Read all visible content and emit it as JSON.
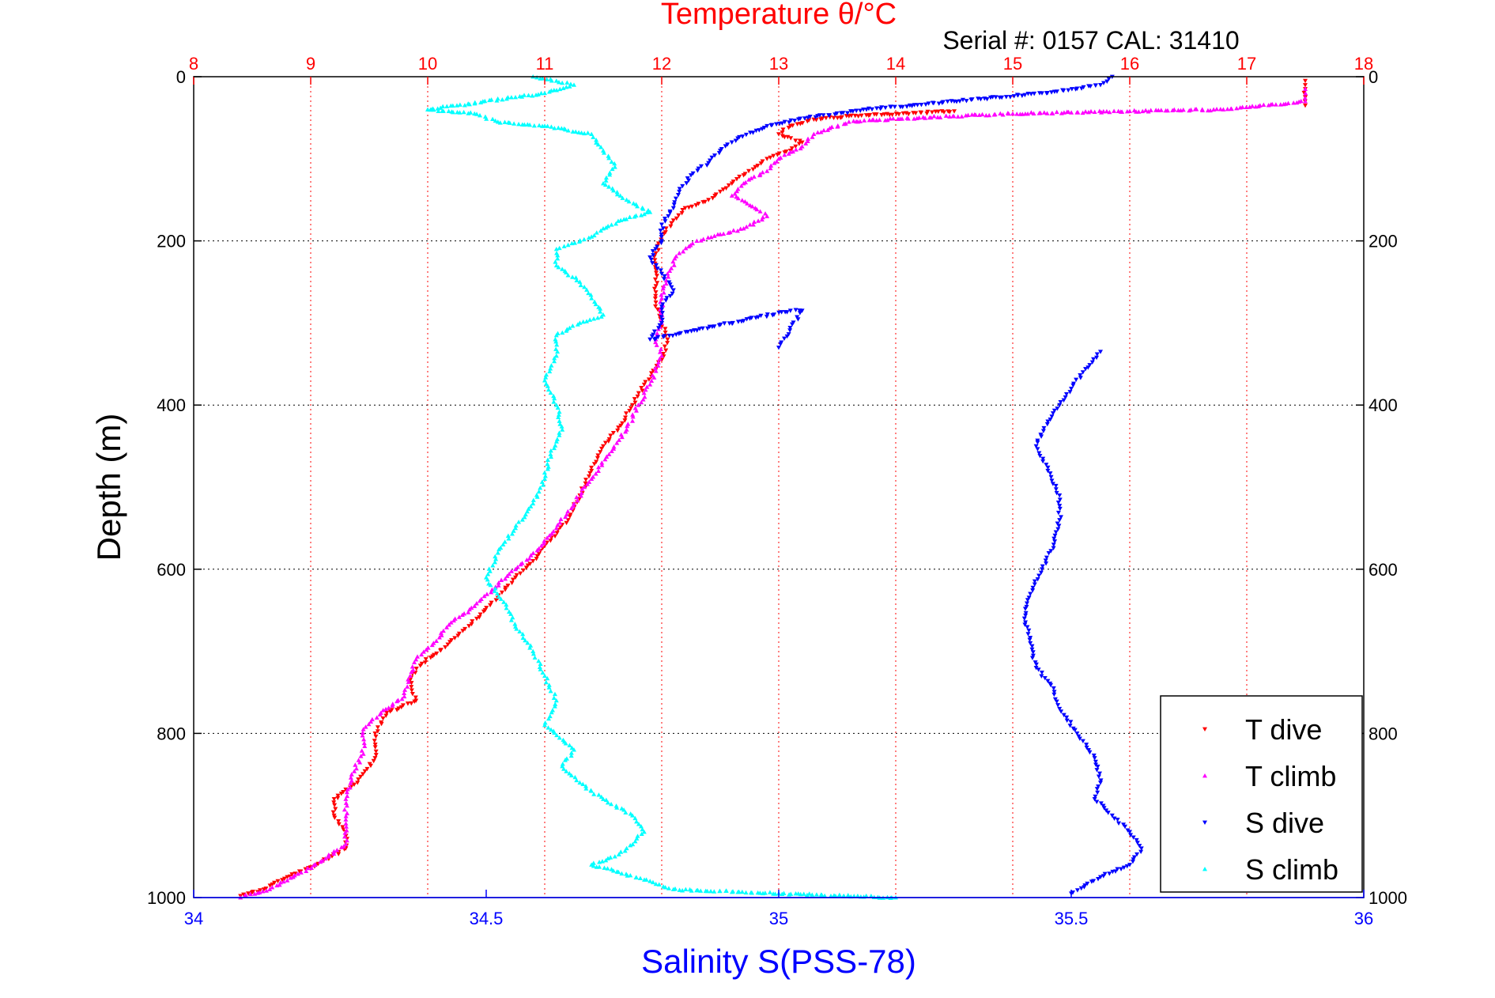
{
  "colors": {
    "temperature": "#ff0000",
    "salinity": "#0000ff",
    "t_dive": "#ff0000",
    "t_climb": "#ff00ff",
    "s_dive": "#0000ff",
    "s_climb": "#00ffff"
  },
  "chart_data": {
    "type": "scatter",
    "title": "Temperature θ/°C",
    "subtitle": "Serial #: 0157  CAL: 31410",
    "ylabel": "Depth (m)",
    "xlabel": "Salinity S(PSS-78)",
    "x2label": "Temperature θ/°C",
    "ylim": [
      1000,
      0
    ],
    "xlim": [
      34,
      36
    ],
    "x2lim": [
      8,
      18
    ],
    "yticks": [
      "0",
      "200",
      "400",
      "600",
      "800",
      "1000"
    ],
    "xticks": [
      "34",
      "34.5",
      "35",
      "35.5",
      "36"
    ],
    "x2ticks": [
      "8",
      "9",
      "10",
      "11",
      "12",
      "13",
      "14",
      "15",
      "16",
      "17",
      "18"
    ],
    "grid": true,
    "legend_position": "bottom-right",
    "legend": [
      "T dive",
      "T climb",
      "S dive",
      "S climb"
    ],
    "series": [
      {
        "name": "T dive",
        "axis": "temperature",
        "marker": "triangle-down",
        "points": [
          [
            17.5,
            5
          ],
          [
            17.5,
            15
          ],
          [
            17.5,
            25
          ],
          [
            17.5,
            35
          ],
          [
            14.5,
            42
          ],
          [
            13.6,
            48
          ],
          [
            13.3,
            52
          ],
          [
            13.1,
            60
          ],
          [
            13.0,
            70
          ],
          [
            13.2,
            80
          ],
          [
            13.1,
            90
          ],
          [
            12.9,
            100
          ],
          [
            12.8,
            110
          ],
          [
            12.7,
            120
          ],
          [
            12.6,
            130
          ],
          [
            12.5,
            140
          ],
          [
            12.4,
            150
          ],
          [
            12.2,
            160
          ],
          [
            12.1,
            175
          ],
          [
            12.0,
            195
          ],
          [
            11.95,
            215
          ],
          [
            11.95,
            235
          ],
          [
            11.95,
            255
          ],
          [
            11.95,
            275
          ],
          [
            12.0,
            300
          ],
          [
            12.05,
            320
          ],
          [
            12.0,
            345
          ],
          [
            11.85,
            375
          ],
          [
            11.75,
            400
          ],
          [
            11.65,
            425
          ],
          [
            11.5,
            450
          ],
          [
            11.4,
            480
          ],
          [
            11.3,
            510
          ],
          [
            11.2,
            540
          ],
          [
            11.05,
            565
          ],
          [
            10.9,
            590
          ],
          [
            10.75,
            610
          ],
          [
            10.6,
            635
          ],
          [
            10.45,
            655
          ],
          [
            10.3,
            675
          ],
          [
            10.15,
            695
          ],
          [
            9.95,
            715
          ],
          [
            9.85,
            735
          ],
          [
            9.9,
            760
          ],
          [
            9.65,
            775
          ],
          [
            9.55,
            800
          ],
          [
            9.55,
            830
          ],
          [
            9.4,
            860
          ],
          [
            9.2,
            880
          ],
          [
            9.2,
            900
          ],
          [
            9.3,
            920
          ],
          [
            9.3,
            940
          ],
          [
            9.05,
            960
          ],
          [
            8.8,
            975
          ],
          [
            8.6,
            990
          ],
          [
            8.4,
            998
          ]
        ]
      },
      {
        "name": "T climb",
        "axis": "temperature",
        "marker": "triangle-up",
        "points": [
          [
            17.5,
            15
          ],
          [
            17.5,
            30
          ],
          [
            16.8,
            40
          ],
          [
            16.0,
            42
          ],
          [
            15.0,
            45
          ],
          [
            14.2,
            50
          ],
          [
            13.6,
            55
          ],
          [
            13.3,
            70
          ],
          [
            13.2,
            85
          ],
          [
            13.0,
            100
          ],
          [
            12.9,
            115
          ],
          [
            12.7,
            130
          ],
          [
            12.6,
            145
          ],
          [
            12.8,
            160
          ],
          [
            12.9,
            170
          ],
          [
            12.7,
            185
          ],
          [
            12.5,
            192
          ],
          [
            12.3,
            200
          ],
          [
            12.15,
            215
          ],
          [
            12.05,
            240
          ],
          [
            12.0,
            270
          ],
          [
            12.0,
            300
          ],
          [
            11.95,
            320
          ],
          [
            12.0,
            340
          ],
          [
            11.9,
            375
          ],
          [
            11.8,
            400
          ],
          [
            11.7,
            430
          ],
          [
            11.55,
            460
          ],
          [
            11.4,
            490
          ],
          [
            11.25,
            520
          ],
          [
            11.1,
            550
          ],
          [
            10.95,
            575
          ],
          [
            10.75,
            600
          ],
          [
            10.55,
            625
          ],
          [
            10.4,
            645
          ],
          [
            10.2,
            665
          ],
          [
            10.05,
            690
          ],
          [
            9.9,
            710
          ],
          [
            9.85,
            730
          ],
          [
            9.8,
            755
          ],
          [
            9.6,
            775
          ],
          [
            9.45,
            795
          ],
          [
            9.45,
            825
          ],
          [
            9.35,
            850
          ],
          [
            9.3,
            880
          ],
          [
            9.3,
            905
          ],
          [
            9.3,
            935
          ],
          [
            9.1,
            955
          ],
          [
            8.85,
            975
          ],
          [
            8.65,
            990
          ],
          [
            8.4,
            1000
          ]
        ]
      },
      {
        "name": "S dive",
        "axis": "salinity",
        "marker": "triangle-down",
        "points": [
          [
            35.57,
            0
          ],
          [
            35.55,
            10
          ],
          [
            35.45,
            20
          ],
          [
            35.3,
            30
          ],
          [
            35.15,
            40
          ],
          [
            35.05,
            50
          ],
          [
            34.98,
            60
          ],
          [
            34.93,
            75
          ],
          [
            34.9,
            90
          ],
          [
            34.88,
            105
          ],
          [
            34.85,
            120
          ],
          [
            34.83,
            140
          ],
          [
            34.82,
            160
          ],
          [
            34.8,
            180
          ],
          [
            34.8,
            200
          ],
          [
            34.78,
            220
          ],
          [
            34.8,
            240
          ],
          [
            34.82,
            260
          ],
          [
            34.8,
            280
          ],
          [
            34.8,
            300
          ],
          [
            34.78,
            320
          ],
          [
            35.02,
            285
          ],
          [
            35.04,
            285
          ],
          [
            35.0,
            330
          ],
          [
            35.55,
            335
          ],
          [
            35.52,
            360
          ],
          [
            35.5,
            380
          ],
          [
            35.48,
            400
          ],
          [
            35.46,
            420
          ],
          [
            35.44,
            450
          ],
          [
            35.46,
            480
          ],
          [
            35.48,
            510
          ],
          [
            35.48,
            540
          ],
          [
            35.47,
            570
          ],
          [
            35.45,
            600
          ],
          [
            35.43,
            630
          ],
          [
            35.42,
            660
          ],
          [
            35.43,
            690
          ],
          [
            35.44,
            720
          ],
          [
            35.47,
            745
          ],
          [
            35.48,
            770
          ],
          [
            35.51,
            800
          ],
          [
            35.54,
            830
          ],
          [
            35.55,
            860
          ],
          [
            35.54,
            880
          ],
          [
            35.57,
            900
          ],
          [
            35.6,
            920
          ],
          [
            35.62,
            940
          ],
          [
            35.6,
            960
          ],
          [
            35.55,
            975
          ],
          [
            35.5,
            995
          ]
        ]
      },
      {
        "name": "S climb",
        "axis": "salinity",
        "marker": "triangle-up",
        "points": [
          [
            34.58,
            0
          ],
          [
            34.62,
            5
          ],
          [
            34.65,
            10
          ],
          [
            34.6,
            20
          ],
          [
            34.55,
            25
          ],
          [
            34.45,
            35
          ],
          [
            34.4,
            40
          ],
          [
            34.48,
            45
          ],
          [
            34.52,
            55
          ],
          [
            34.6,
            60
          ],
          [
            34.68,
            70
          ],
          [
            34.7,
            90
          ],
          [
            34.72,
            110
          ],
          [
            34.7,
            130
          ],
          [
            34.74,
            150
          ],
          [
            34.78,
            165
          ],
          [
            34.73,
            175
          ],
          [
            34.7,
            185
          ],
          [
            34.68,
            195
          ],
          [
            34.64,
            205
          ],
          [
            34.62,
            210
          ],
          [
            34.62,
            230
          ],
          [
            34.66,
            250
          ],
          [
            34.68,
            270
          ],
          [
            34.7,
            290
          ],
          [
            34.66,
            300
          ],
          [
            34.62,
            315
          ],
          [
            34.62,
            340
          ],
          [
            34.6,
            370
          ],
          [
            34.62,
            400
          ],
          [
            34.63,
            430
          ],
          [
            34.61,
            460
          ],
          [
            34.6,
            490
          ],
          [
            34.58,
            520
          ],
          [
            34.55,
            550
          ],
          [
            34.52,
            580
          ],
          [
            34.5,
            610
          ],
          [
            34.53,
            640
          ],
          [
            34.55,
            670
          ],
          [
            34.58,
            700
          ],
          [
            34.6,
            730
          ],
          [
            34.62,
            760
          ],
          [
            34.6,
            790
          ],
          [
            34.65,
            820
          ],
          [
            34.63,
            840
          ],
          [
            34.66,
            860
          ],
          [
            34.7,
            880
          ],
          [
            34.75,
            900
          ],
          [
            34.77,
            920
          ],
          [
            34.74,
            940
          ],
          [
            34.72,
            950
          ],
          [
            34.68,
            960
          ],
          [
            34.78,
            980
          ],
          [
            34.82,
            990
          ],
          [
            35.0,
            995
          ],
          [
            35.2,
            1000
          ]
        ]
      }
    ]
  }
}
